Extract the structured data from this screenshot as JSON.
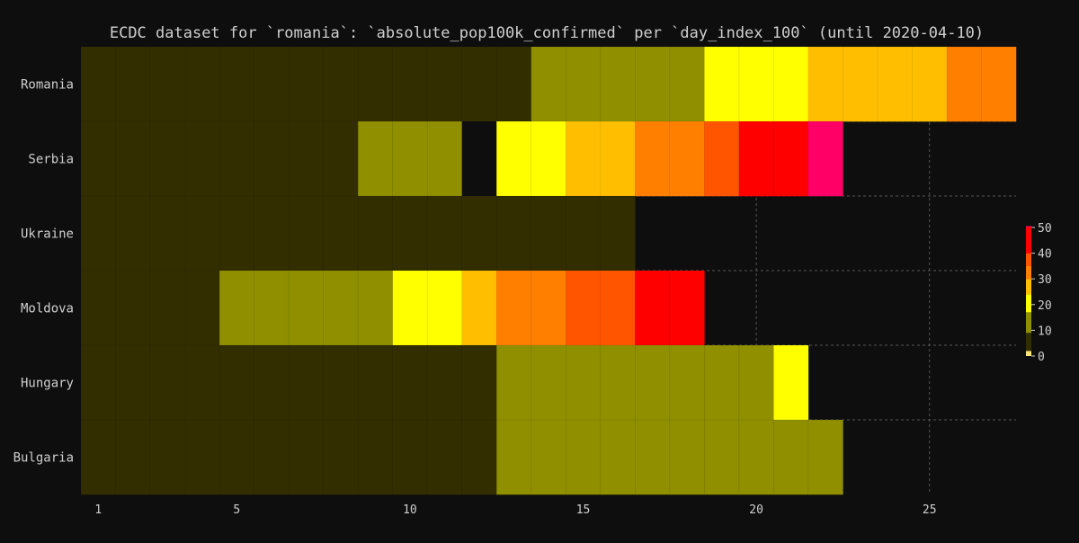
{
  "chart_data": {
    "type": "heatmap",
    "title": "ECDC dataset for `romania`: `absolute_pop100k_confirmed` per `day_index_100` (until 2020-04-10)",
    "xlabel": "",
    "ylabel": "",
    "x": [
      1,
      2,
      3,
      4,
      5,
      6,
      7,
      8,
      9,
      10,
      11,
      12,
      13,
      14,
      15,
      16,
      17,
      18,
      19,
      20,
      21,
      22,
      23,
      24,
      25,
      26,
      27
    ],
    "xlim": [
      0.5,
      27.5
    ],
    "xticks": [
      1,
      5,
      10,
      15,
      20,
      25
    ],
    "grid": true,
    "categories": [
      "Romania",
      "Serbia",
      "Ukraine",
      "Moldova",
      "Hungary",
      "Bulgaria"
    ],
    "series": [
      {
        "values": [
          2,
          2,
          2,
          2,
          2,
          2,
          2,
          2,
          2,
          2,
          2,
          2,
          2,
          9,
          9,
          9,
          9,
          9,
          17,
          17,
          17,
          24,
          24,
          24,
          24,
          30,
          30
        ]
      },
      {
        "values": [
          2,
          2,
          2,
          2,
          2,
          2,
          2,
          2,
          9,
          9,
          9,
          0,
          17,
          17,
          24,
          24,
          30,
          30,
          35,
          40,
          40,
          50,
          null,
          null,
          null,
          null,
          null
        ]
      },
      {
        "values": [
          2,
          2,
          2,
          2,
          2,
          2,
          2,
          2,
          2,
          2,
          2,
          2,
          2,
          2,
          2,
          2,
          null,
          null,
          null,
          null,
          null,
          null,
          null,
          null,
          null,
          null,
          null
        ]
      },
      {
        "values": [
          2,
          2,
          2,
          2,
          9,
          9,
          9,
          9,
          9,
          17,
          17,
          24,
          30,
          30,
          35,
          35,
          40,
          40,
          null,
          null,
          null,
          null,
          null,
          null,
          null,
          null,
          null
        ]
      },
      {
        "values": [
          2,
          2,
          2,
          2,
          2,
          2,
          2,
          2,
          2,
          2,
          2,
          2,
          9,
          9,
          9,
          9,
          9,
          9,
          9,
          9,
          17,
          null,
          null,
          null,
          null,
          null,
          null
        ]
      },
      {
        "values": [
          2,
          2,
          2,
          2,
          2,
          2,
          2,
          2,
          2,
          2,
          2,
          2,
          9,
          9,
          9,
          9,
          9,
          9,
          9,
          9,
          9,
          9,
          null,
          null,
          null,
          null,
          null
        ]
      }
    ],
    "colorbar": {
      "range": [
        0,
        50
      ],
      "ticks": [
        0,
        10,
        20,
        30,
        40,
        50
      ],
      "colors": [
        {
          "value": 0,
          "color": "#ffe080"
        },
        {
          "value": 2,
          "color": "#332e00"
        },
        {
          "value": 9,
          "color": "#8f8f00"
        },
        {
          "value": 17,
          "color": "#ffff00"
        },
        {
          "value": 24,
          "color": "#ffbf00"
        },
        {
          "value": 30,
          "color": "#ff7f00"
        },
        {
          "value": 35,
          "color": "#ff5500"
        },
        {
          "value": 40,
          "color": "#ff0000"
        },
        {
          "value": 50,
          "color": "#ff0066"
        }
      ]
    },
    "colors": {
      "background": "#0e0e0e",
      "text": "#cfcfcf",
      "grid": "#555555",
      "zero": "#0e0e0e"
    }
  }
}
